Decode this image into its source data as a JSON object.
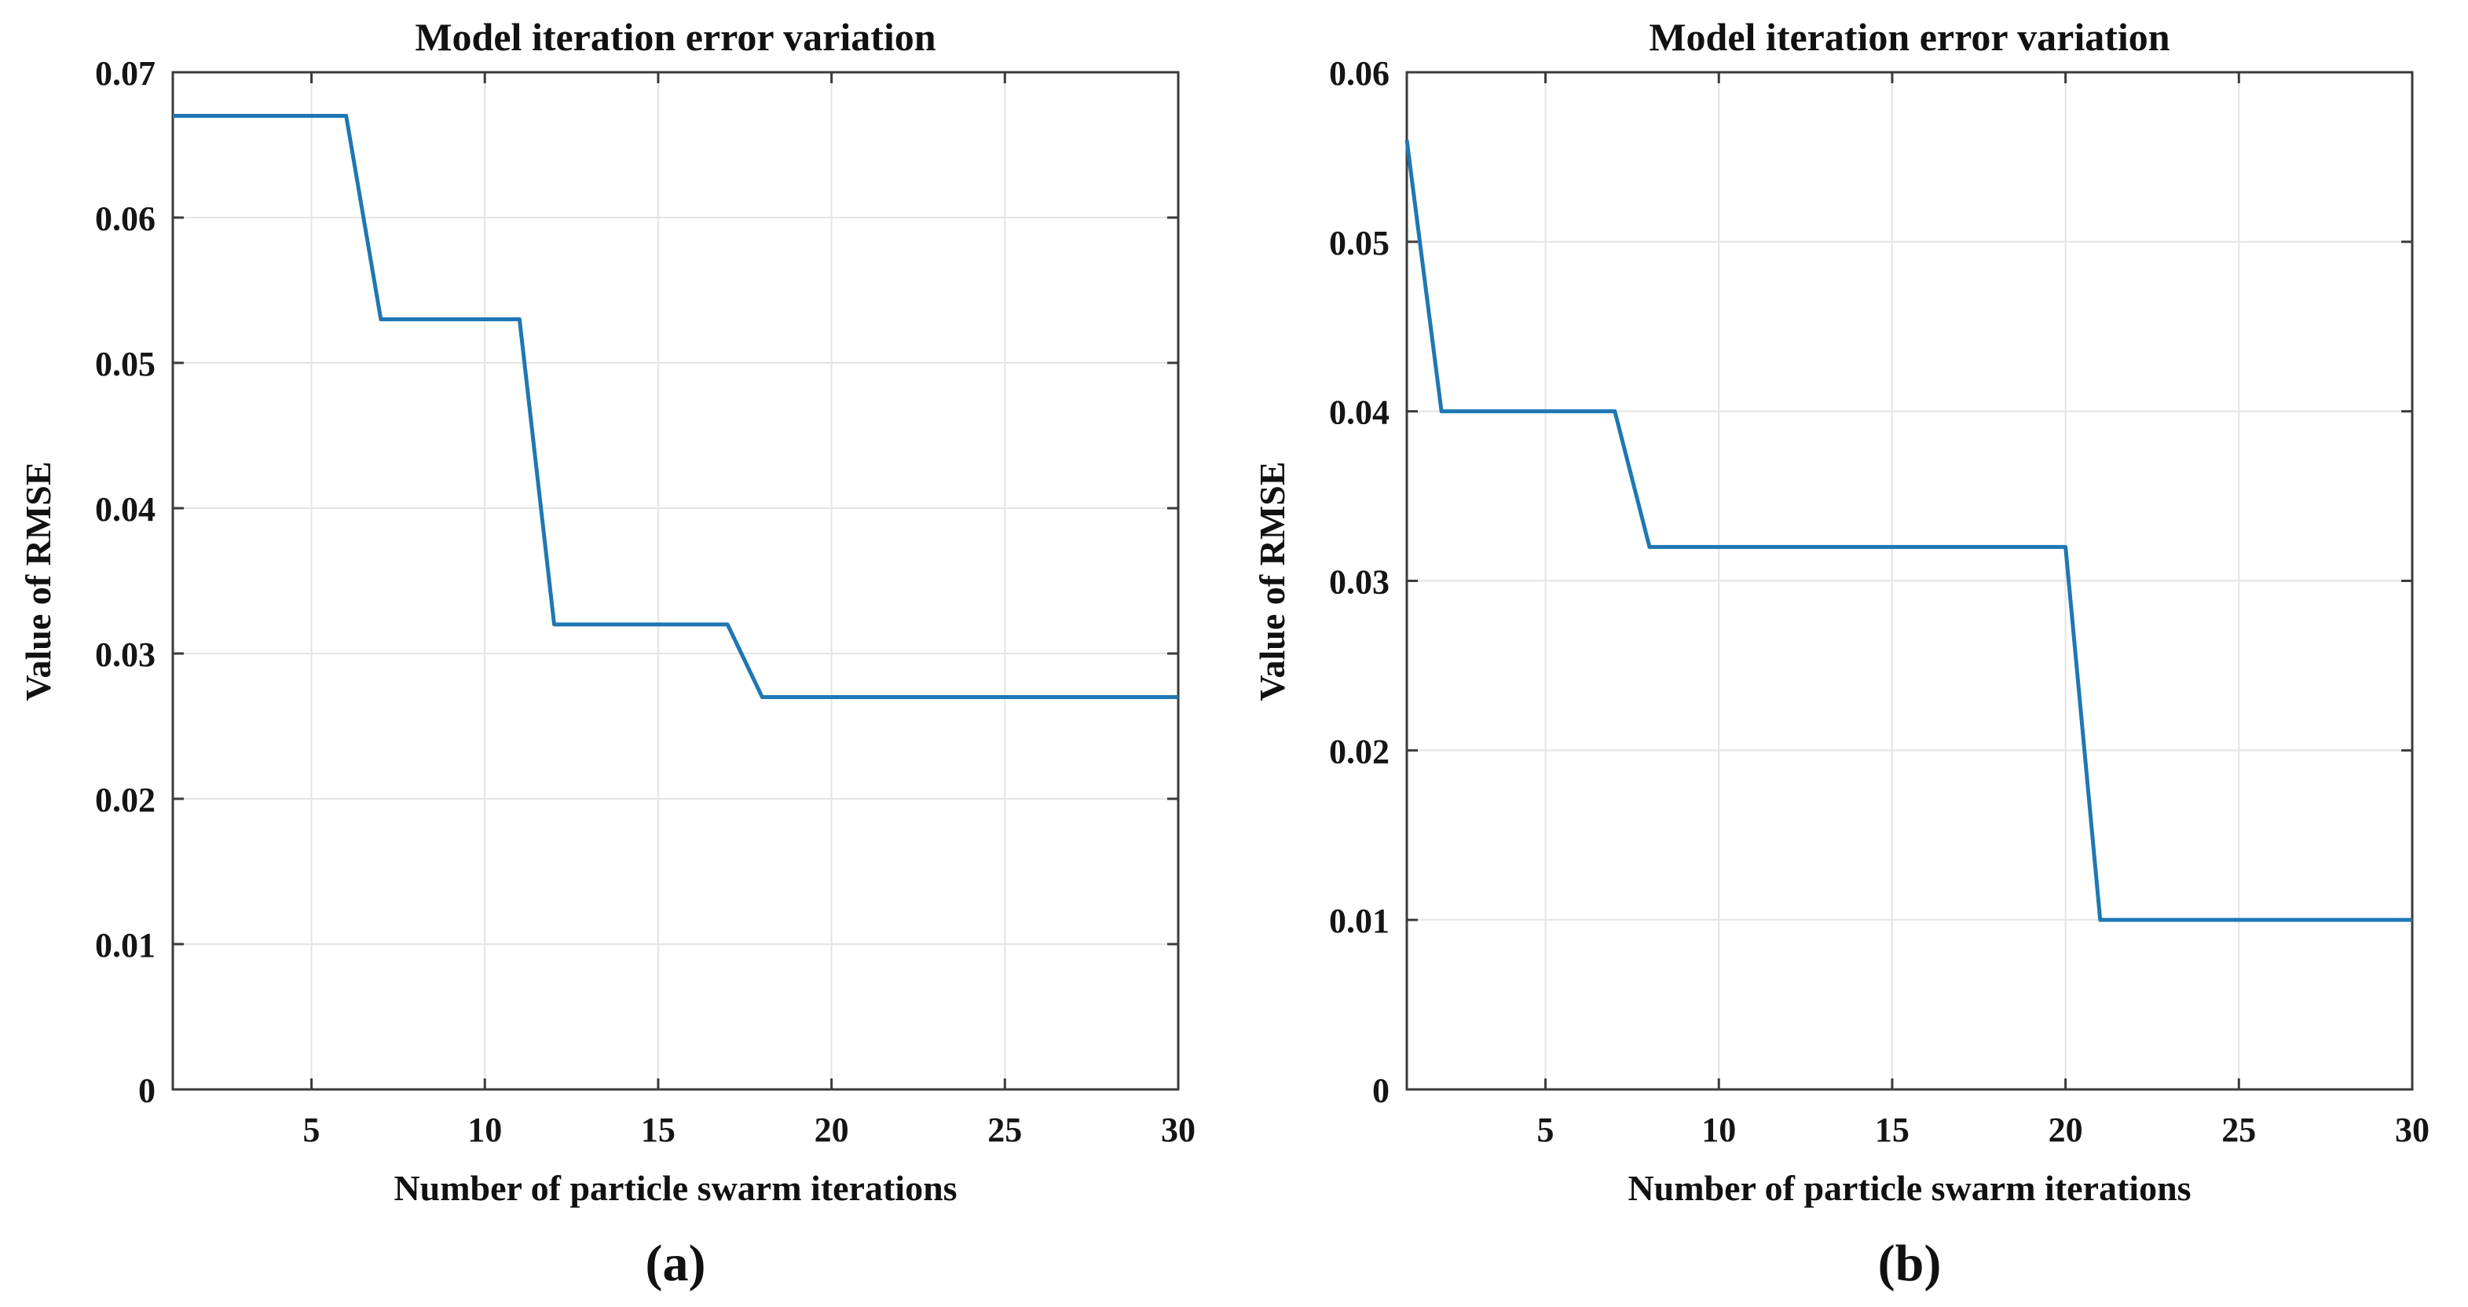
{
  "figure": {
    "background": "#ffffff",
    "axis_color": "#3b3b3b",
    "grid_color": "#e4e4e4",
    "text_color": "#111111"
  },
  "chart_data": [
    {
      "type": "line",
      "panel": "a",
      "caption": "(a)",
      "title": "Model iteration error variation",
      "xlabel": "Number of particle swarm iterations",
      "ylabel": "Value of RMSE",
      "xlim": [
        1,
        30
      ],
      "ylim": [
        0,
        0.07
      ],
      "xticks": [
        5,
        10,
        15,
        20,
        25,
        30
      ],
      "xtick_labels": [
        "5",
        "10",
        "15",
        "20",
        "25",
        "30"
      ],
      "yticks": [
        0,
        0.01,
        0.02,
        0.03,
        0.04,
        0.05,
        0.06,
        0.07
      ],
      "ytick_labels": [
        "0",
        "0.01",
        "0.02",
        "0.03",
        "0.04",
        "0.05",
        "0.06",
        "0.07"
      ],
      "grid": true,
      "legend": "none",
      "line_color": "#1f77b4",
      "series": [
        {
          "name": "RMSE",
          "x": [
            1,
            2,
            3,
            4,
            5,
            6,
            7,
            8,
            9,
            10,
            11,
            12,
            13,
            14,
            15,
            16,
            17,
            18,
            19,
            20,
            21,
            22,
            23,
            24,
            25,
            26,
            27,
            28,
            29,
            30
          ],
          "y": [
            0.067,
            0.067,
            0.067,
            0.067,
            0.067,
            0.067,
            0.053,
            0.053,
            0.053,
            0.053,
            0.053,
            0.032,
            0.032,
            0.032,
            0.032,
            0.032,
            0.032,
            0.027,
            0.027,
            0.027,
            0.027,
            0.027,
            0.027,
            0.027,
            0.027,
            0.027,
            0.027,
            0.027,
            0.027,
            0.027
          ]
        }
      ]
    },
    {
      "type": "line",
      "panel": "b",
      "caption": "(b)",
      "title": "Model iteration error variation",
      "xlabel": "Number of particle swarm iterations",
      "ylabel": "Value of RMSE",
      "xlim": [
        1,
        30
      ],
      "ylim": [
        0,
        0.06
      ],
      "xticks": [
        5,
        10,
        15,
        20,
        25,
        30
      ],
      "xtick_labels": [
        "5",
        "10",
        "15",
        "20",
        "25",
        "30"
      ],
      "yticks": [
        0,
        0.01,
        0.02,
        0.03,
        0.04,
        0.05,
        0.06
      ],
      "ytick_labels": [
        "0",
        "0.01",
        "0.02",
        "0.03",
        "0.04",
        "0.05",
        "0.06"
      ],
      "grid": true,
      "legend": "none",
      "line_color": "#1f77b4",
      "series": [
        {
          "name": "RMSE",
          "x": [
            1,
            2,
            3,
            4,
            5,
            6,
            7,
            8,
            9,
            10,
            11,
            12,
            13,
            14,
            15,
            16,
            17,
            18,
            19,
            20,
            21,
            22,
            23,
            24,
            25,
            26,
            27,
            28,
            29,
            30
          ],
          "y": [
            0.056,
            0.04,
            0.04,
            0.04,
            0.04,
            0.04,
            0.04,
            0.032,
            0.032,
            0.032,
            0.032,
            0.032,
            0.032,
            0.032,
            0.032,
            0.032,
            0.032,
            0.032,
            0.032,
            0.032,
            0.01,
            0.01,
            0.01,
            0.01,
            0.01,
            0.01,
            0.01,
            0.01,
            0.01,
            0.01
          ]
        }
      ]
    }
  ]
}
